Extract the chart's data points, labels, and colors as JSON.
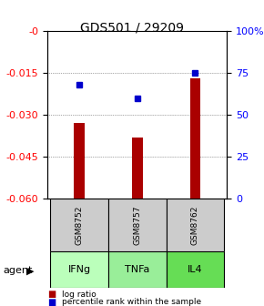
{
  "title": "GDS501 / 29209",
  "samples": [
    "GSM8752",
    "GSM8757",
    "GSM8762"
  ],
  "agents": [
    "IFNg",
    "TNFa",
    "IL4"
  ],
  "log_ratios": [
    -0.033,
    -0.038,
    -0.017
  ],
  "percentile_ranks": [
    68,
    60,
    75
  ],
  "ylim_left": [
    -0.06,
    0.0
  ],
  "ylim_right": [
    0,
    100
  ],
  "yticks_left": [
    0,
    -0.015,
    -0.03,
    -0.045,
    -0.06
  ],
  "yticks_right": [
    100,
    75,
    50,
    25,
    0
  ],
  "bar_color": "#aa0000",
  "dot_color": "#0000cc",
  "sample_bg": "#cccccc",
  "agent_color_light": "#bbffbb",
  "agent_color_mid": "#99ee99",
  "agent_color_bright": "#66dd55",
  "grid_color": "#555555",
  "bar_width": 0.18
}
